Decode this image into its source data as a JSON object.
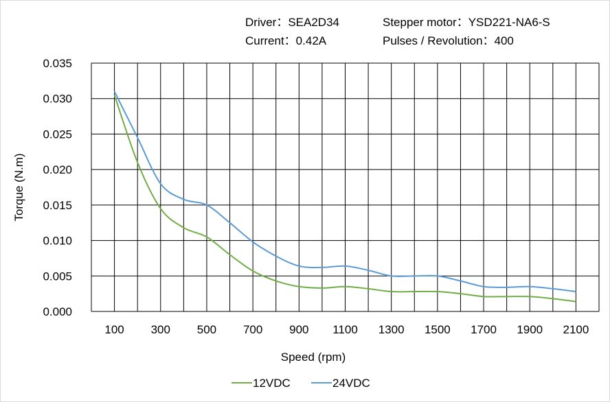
{
  "info": {
    "driver": "Driver：SEA2D34",
    "motor": "Stepper motor：YSD221-NA6-S",
    "current": "Current：0.42A",
    "pulses": "Pulses / Revolution：400"
  },
  "chart_data": {
    "type": "line",
    "title": "",
    "xlabel": "Speed  (rpm)",
    "ylabel": "Torque (N.m)",
    "xlim": [
      0,
      2200
    ],
    "ylim": [
      0,
      0.035
    ],
    "x_tick_labels": [
      "100",
      "300",
      "500",
      "700",
      "900",
      "1100",
      "1300",
      "1500",
      "1700",
      "1900",
      "2100"
    ],
    "y_tick_labels": [
      "0.000",
      "0.005",
      "0.010",
      "0.015",
      "0.020",
      "0.025",
      "0.030",
      "0.035"
    ],
    "grid": true,
    "legend_position": "bottom",
    "x": [
      100,
      200,
      300,
      400,
      500,
      600,
      700,
      800,
      900,
      1000,
      1100,
      1200,
      1300,
      1400,
      1500,
      1600,
      1700,
      1800,
      1900,
      2000,
      2100
    ],
    "series": [
      {
        "name": "12VDC",
        "color": "#70ad47",
        "values": [
          0.0305,
          0.021,
          0.0145,
          0.0118,
          0.0105,
          0.008,
          0.0057,
          0.0043,
          0.0035,
          0.0033,
          0.0035,
          0.0032,
          0.0028,
          0.0028,
          0.0028,
          0.0025,
          0.0021,
          0.0021,
          0.0021,
          0.0018,
          0.0014
        ]
      },
      {
        "name": "24VDC",
        "color": "#5b9bd5",
        "values": [
          0.031,
          0.0245,
          0.018,
          0.0158,
          0.015,
          0.0125,
          0.0098,
          0.0078,
          0.0064,
          0.0062,
          0.0064,
          0.0058,
          0.005,
          0.005,
          0.005,
          0.0043,
          0.0035,
          0.0034,
          0.0035,
          0.0032,
          0.0028
        ]
      }
    ]
  }
}
